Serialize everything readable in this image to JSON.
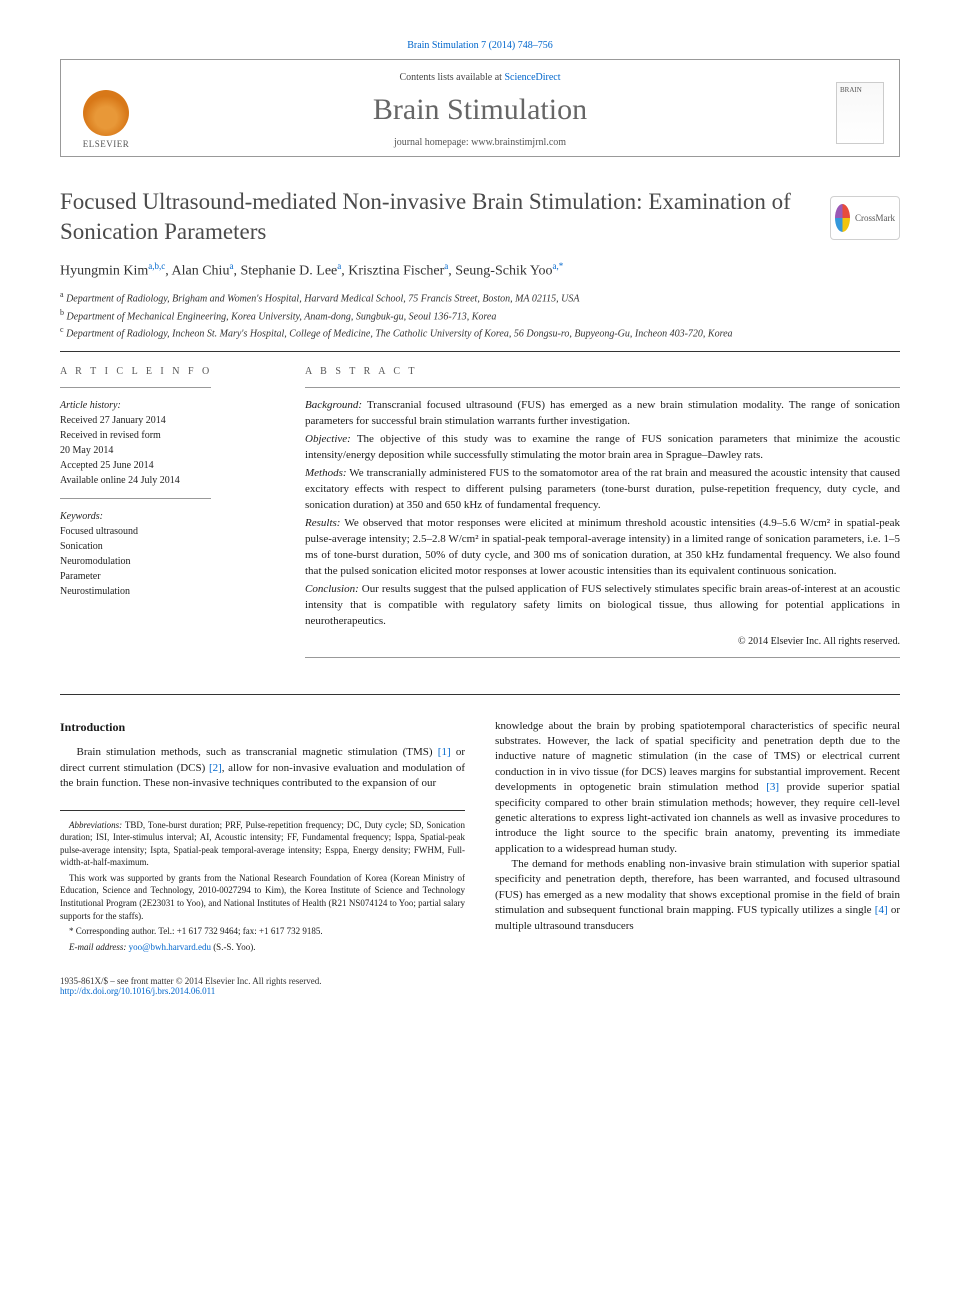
{
  "citation": "Brain Stimulation 7 (2014) 748–756",
  "masthead": {
    "contents_line_prefix": "Contents lists available at ",
    "contents_link": "ScienceDirect",
    "journal_name": "Brain Stimulation",
    "homepage_prefix": "journal homepage: ",
    "homepage": "www.brainstimjrnl.com",
    "publisher": "ELSEVIER",
    "cover_label": "BRAIN"
  },
  "title": "Focused Ultrasound-mediated Non-invasive Brain Stimulation: Examination of Sonication Parameters",
  "crossmark": "CrossMark",
  "authors_html": "Hyungmin Kim|a,b,c|, Alan Chiu|a|, Stephanie D. Lee|a|, Krisztina Fischer|a|, Seung-Schik Yoo|a,*|",
  "affiliations": [
    {
      "sup": "a",
      "text": "Department of Radiology, Brigham and Women's Hospital, Harvard Medical School, 75 Francis Street, Boston, MA 02115, USA"
    },
    {
      "sup": "b",
      "text": "Department of Mechanical Engineering, Korea University, Anam-dong, Sungbuk-gu, Seoul 136-713, Korea"
    },
    {
      "sup": "c",
      "text": "Department of Radiology, Incheon St. Mary's Hospital, College of Medicine, The Catholic University of Korea, 56 Dongsu-ro, Bupyeong-Gu, Incheon 403-720, Korea"
    }
  ],
  "article_info": {
    "head": "A R T I C L E  I N F O",
    "history_label": "Article history:",
    "history": [
      "Received 27 January 2014",
      "Received in revised form",
      "20 May 2014",
      "Accepted 25 June 2014",
      "Available online 24 July 2014"
    ],
    "keywords_label": "Keywords:",
    "keywords": [
      "Focused ultrasound",
      "Sonication",
      "Neuromodulation",
      "Parameter",
      "Neurostimulation"
    ]
  },
  "abstract": {
    "head": "A B S T R A C T",
    "sections": [
      {
        "label": "Background:",
        "text": " Transcranial focused ultrasound (FUS) has emerged as a new brain stimulation modality. The range of sonication parameters for successful brain stimulation warrants further investigation."
      },
      {
        "label": "Objective:",
        "text": " The objective of this study was to examine the range of FUS sonication parameters that minimize the acoustic intensity/energy deposition while successfully stimulating the motor brain area in Sprague–Dawley rats."
      },
      {
        "label": "Methods:",
        "text": " We transcranially administered FUS to the somatomotor area of the rat brain and measured the acoustic intensity that caused excitatory effects with respect to different pulsing parameters (tone-burst duration, pulse-repetition frequency, duty cycle, and sonication duration) at 350 and 650 kHz of fundamental frequency."
      },
      {
        "label": "Results:",
        "text": " We observed that motor responses were elicited at minimum threshold acoustic intensities (4.9–5.6 W/cm² in spatial-peak pulse-average intensity; 2.5–2.8 W/cm² in spatial-peak temporal-average intensity) in a limited range of sonication parameters, i.e. 1–5 ms of tone-burst duration, 50% of duty cycle, and 300 ms of sonication duration, at 350 kHz fundamental frequency. We also found that the pulsed sonication elicited motor responses at lower acoustic intensities than its equivalent continuous sonication."
      },
      {
        "label": "Conclusion:",
        "text": " Our results suggest that the pulsed application of FUS selectively stimulates specific brain areas-of-interest at an acoustic intensity that is compatible with regulatory safety limits on biological tissue, thus allowing for potential applications in neurotherapeutics."
      }
    ],
    "copyright": "© 2014 Elsevier Inc. All rights reserved."
  },
  "body": {
    "intro_head": "Introduction",
    "col1_p1_a": "Brain stimulation methods, such as transcranial magnetic stimulation (TMS) ",
    "col1_ref1": "[1]",
    "col1_p1_b": " or direct current stimulation (DCS) ",
    "col1_ref2": "[2]",
    "col1_p1_c": ", allow for non-invasive evaluation and modulation of the brain function. These non-invasive techniques contributed to the expansion of our",
    "col2_p1_a": "knowledge about the brain by probing spatiotemporal characteristics of specific neural substrates. However, the lack of spatial specificity and penetration depth due to the inductive nature of magnetic stimulation (in the case of TMS) or electrical current conduction in in vivo tissue (for DCS) leaves margins for substantial improvement. Recent developments in optogenetic brain stimulation method ",
    "col2_ref3": "[3]",
    "col2_p1_b": " provide superior spatial specificity compared to other brain stimulation methods; however, they require cell-level genetic alterations to express light-activated ion channels as well as invasive procedures to introduce the light source to the specific brain anatomy, preventing its immediate application to a widespread human study.",
    "col2_p2_a": "The demand for methods enabling non-invasive brain stimulation with superior spatial specificity and penetration depth, therefore, has been warranted, and focused ultrasound (FUS) has emerged as a new modality that shows exceptional promise in the field of brain stimulation and subsequent functional brain mapping. FUS typically utilizes a single ",
    "col2_ref4": "[4]",
    "col2_p2_b": " or multiple ultrasound transducers"
  },
  "footnotes": {
    "abbrev_label": "Abbreviations:",
    "abbrev": " TBD, Tone-burst duration; PRF, Pulse-repetition frequency; DC, Duty cycle; SD, Sonication duration; ISI, Inter-stimulus interval; AI, Acoustic intensity; FF, Fundamental frequency; Isppa, Spatial-peak pulse-average intensity; Ispta, Spatial-peak temporal-average intensity; Esppa, Energy density; FWHM, Full-width-at-half-maximum.",
    "funding": "This work was supported by grants from the National Research Foundation of Korea (Korean Ministry of Education, Science and Technology, 2010-0027294 to Kim), the Korea Institute of Science and Technology Institutional Program (2E23031 to Yoo), and National Institutes of Health (R21 NS074124 to Yoo; partial salary supports for the staffs).",
    "corr": "* Corresponding author. Tel.: +1 617 732 9464; fax: +1 617 732 9185.",
    "email_label": "E-mail address:",
    "email": " yoo@bwh.harvard.edu",
    "email_suffix": " (S.-S. Yoo)."
  },
  "footer": {
    "issn": "1935-861X/$ – see front matter © 2014 Elsevier Inc. All rights reserved.",
    "doi": "http://dx.doi.org/10.1016/j.brs.2014.06.011"
  },
  "colors": {
    "link": "#0066cc",
    "heading_gray": "#4a4a4a"
  }
}
